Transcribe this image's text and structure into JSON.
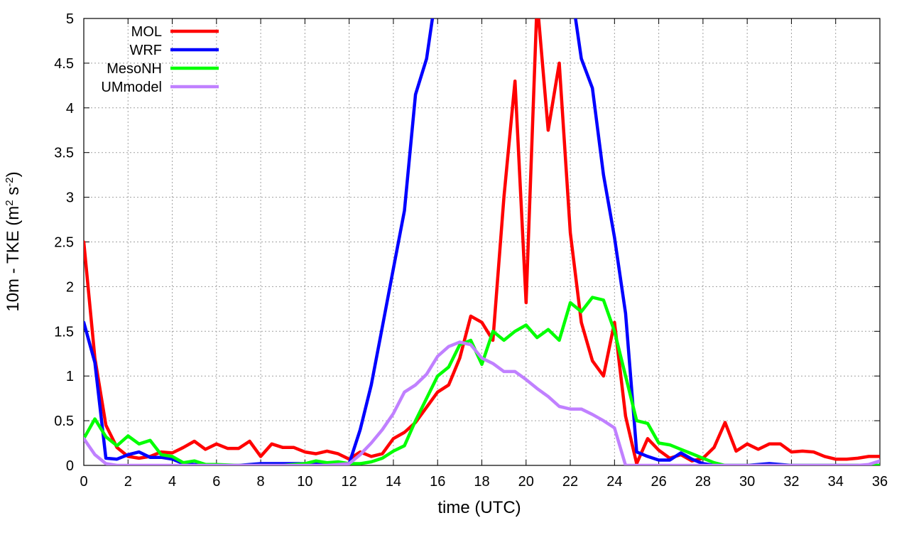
{
  "chart_data": {
    "type": "line",
    "title": "",
    "xlabel": "time (UTC)",
    "ylabel_main": "10m - TKE (m",
    "ylabel_sup1": "2",
    "ylabel_mid": " s",
    "ylabel_sup2": "-2",
    "ylabel_end": ")",
    "xlim": [
      0,
      36
    ],
    "ylim": [
      0,
      5
    ],
    "xticks": [
      0,
      2,
      4,
      6,
      8,
      10,
      12,
      14,
      16,
      18,
      20,
      22,
      24,
      26,
      28,
      30,
      32,
      34,
      36
    ],
    "yticks": [
      0,
      0.5,
      1,
      1.5,
      2,
      2.5,
      3,
      3.5,
      4,
      4.5,
      5
    ],
    "ytick_labels": [
      "0",
      "0.5",
      "1",
      "1.5",
      "2",
      "2.5",
      "3",
      "3.5",
      "4",
      "4.5",
      "5"
    ],
    "grid": true,
    "legend_position": "top-left",
    "series": [
      {
        "name": "MOL",
        "color": "#ff0000",
        "x": [
          0,
          0.5,
          1,
          1.5,
          2,
          2.5,
          3,
          3.5,
          4,
          4.5,
          5,
          5.5,
          6,
          6.5,
          7,
          7.5,
          8,
          8.5,
          9,
          9.5,
          10,
          10.5,
          11,
          11.5,
          12,
          12.5,
          13,
          13.5,
          14,
          14.5,
          15,
          15.5,
          16,
          16.5,
          17,
          17.5,
          18,
          18.5,
          19,
          19.5,
          20,
          20.5,
          21,
          21.5,
          22,
          22.5,
          23,
          23.5,
          24,
          24.5,
          25,
          25.5,
          26,
          26.5,
          27,
          27.5,
          28,
          28.5,
          29,
          29.5,
          30,
          30.5,
          31,
          31.5,
          32,
          32.5,
          33,
          33.5,
          34,
          34.5,
          35,
          35.5,
          36
        ],
        "values": [
          2.5,
          1.2,
          0.45,
          0.2,
          0.1,
          0.08,
          0.1,
          0.15,
          0.14,
          0.2,
          0.27,
          0.18,
          0.24,
          0.19,
          0.19,
          0.27,
          0.1,
          0.24,
          0.2,
          0.2,
          0.15,
          0.13,
          0.16,
          0.13,
          0.07,
          0.15,
          0.1,
          0.13,
          0.3,
          0.37,
          0.48,
          0.65,
          0.82,
          0.9,
          1.2,
          1.67,
          1.6,
          1.4,
          3.0,
          4.3,
          1.82,
          5.2,
          3.75,
          4.5,
          2.6,
          1.6,
          1.17,
          1.0,
          1.6,
          0.55,
          0.02,
          0.3,
          0.17,
          0.08,
          0.12,
          0.05,
          0.08,
          0.2,
          0.48,
          0.16,
          0.24,
          0.18,
          0.24,
          0.24,
          0.15,
          0.16,
          0.15,
          0.1,
          0.07,
          0.07,
          0.08,
          0.1,
          0.1
        ]
      },
      {
        "name": "WRF",
        "color": "#0000ff",
        "x": [
          0,
          0.5,
          1,
          1.5,
          2,
          2.5,
          3,
          3.5,
          4,
          4.5,
          5,
          6,
          7,
          8,
          9,
          10,
          11,
          12,
          12.5,
          13,
          13.5,
          14,
          14.5,
          15,
          15.5,
          16,
          22,
          22.5,
          23,
          23.5,
          24,
          24.5,
          25,
          25.5,
          26,
          26.5,
          27,
          27.5,
          28,
          28.5,
          29,
          30,
          31,
          32,
          33,
          34,
          35,
          36
        ],
        "values": [
          1.6,
          1.15,
          0.08,
          0.07,
          0.12,
          0.15,
          0.09,
          0.09,
          0.07,
          0.02,
          0.01,
          0.0,
          0.0,
          0.02,
          0.02,
          0.02,
          0.02,
          0.02,
          0.4,
          0.9,
          1.55,
          2.2,
          2.85,
          4.15,
          4.55,
          5.4,
          5.4,
          4.55,
          4.22,
          3.25,
          2.55,
          1.7,
          0.15,
          0.1,
          0.06,
          0.06,
          0.14,
          0.07,
          0.02,
          0.0,
          0.0,
          0.0,
          0.02,
          0.0,
          0.0,
          0.0,
          0.0,
          0.0
        ]
      },
      {
        "name": "MesoNH",
        "color": "#00ff00",
        "x": [
          0,
          0.5,
          1,
          1.5,
          2,
          2.5,
          3,
          3.5,
          4,
          4.5,
          5,
          5.5,
          6,
          7,
          8,
          9,
          10,
          10.5,
          11,
          11.5,
          12,
          12.5,
          13,
          13.5,
          14,
          14.5,
          15,
          15.5,
          16,
          16.5,
          17,
          17.5,
          18,
          18.5,
          19,
          19.5,
          20,
          20.5,
          21,
          21.5,
          22,
          22.5,
          23,
          23.5,
          24,
          24.5,
          25,
          25.5,
          26,
          26.5,
          27,
          27.5,
          28,
          28.5,
          29,
          30,
          31,
          32,
          33,
          34,
          35,
          36
        ],
        "values": [
          0.3,
          0.52,
          0.32,
          0.22,
          0.33,
          0.24,
          0.28,
          0.12,
          0.1,
          0.03,
          0.05,
          0.01,
          0.01,
          0.0,
          0.0,
          0.0,
          0.02,
          0.05,
          0.03,
          0.04,
          0.02,
          0.02,
          0.04,
          0.08,
          0.16,
          0.22,
          0.5,
          0.75,
          1.0,
          1.1,
          1.35,
          1.4,
          1.13,
          1.5,
          1.4,
          1.5,
          1.57,
          1.43,
          1.52,
          1.4,
          1.82,
          1.72,
          1.88,
          1.85,
          1.5,
          1.0,
          0.5,
          0.47,
          0.25,
          0.23,
          0.18,
          0.13,
          0.08,
          0.03,
          0.0,
          0.0,
          0.0,
          0.0,
          0.0,
          0.0,
          0.0,
          0.0
        ]
      },
      {
        "name": "UMmodel",
        "color": "#c080ff",
        "x": [
          0,
          0.5,
          1,
          1.5,
          2,
          3,
          4,
          5,
          6,
          7,
          8,
          9,
          10,
          11,
          12,
          12.5,
          13,
          13.5,
          14,
          14.5,
          15,
          15.5,
          16,
          16.5,
          17,
          17.5,
          18,
          18.5,
          19,
          19.5,
          20,
          20.5,
          21,
          21.5,
          22,
          22.5,
          23,
          23.5,
          24,
          24.5,
          25,
          26,
          27,
          28,
          29,
          30,
          31,
          32,
          33,
          34,
          35,
          35.5,
          36
        ],
        "values": [
          0.3,
          0.12,
          0.02,
          0.0,
          0.0,
          0.0,
          0.0,
          0.0,
          0.0,
          0.0,
          0.0,
          0.0,
          0.0,
          0.0,
          0.02,
          0.12,
          0.25,
          0.4,
          0.58,
          0.82,
          0.9,
          1.02,
          1.22,
          1.33,
          1.38,
          1.35,
          1.2,
          1.14,
          1.05,
          1.05,
          0.96,
          0.86,
          0.77,
          0.66,
          0.63,
          0.63,
          0.57,
          0.5,
          0.42,
          0.0,
          0.0,
          0.0,
          0.0,
          0.0,
          0.0,
          0.0,
          0.0,
          0.0,
          0.0,
          0.0,
          0.0,
          0.01,
          0.05
        ]
      }
    ]
  }
}
